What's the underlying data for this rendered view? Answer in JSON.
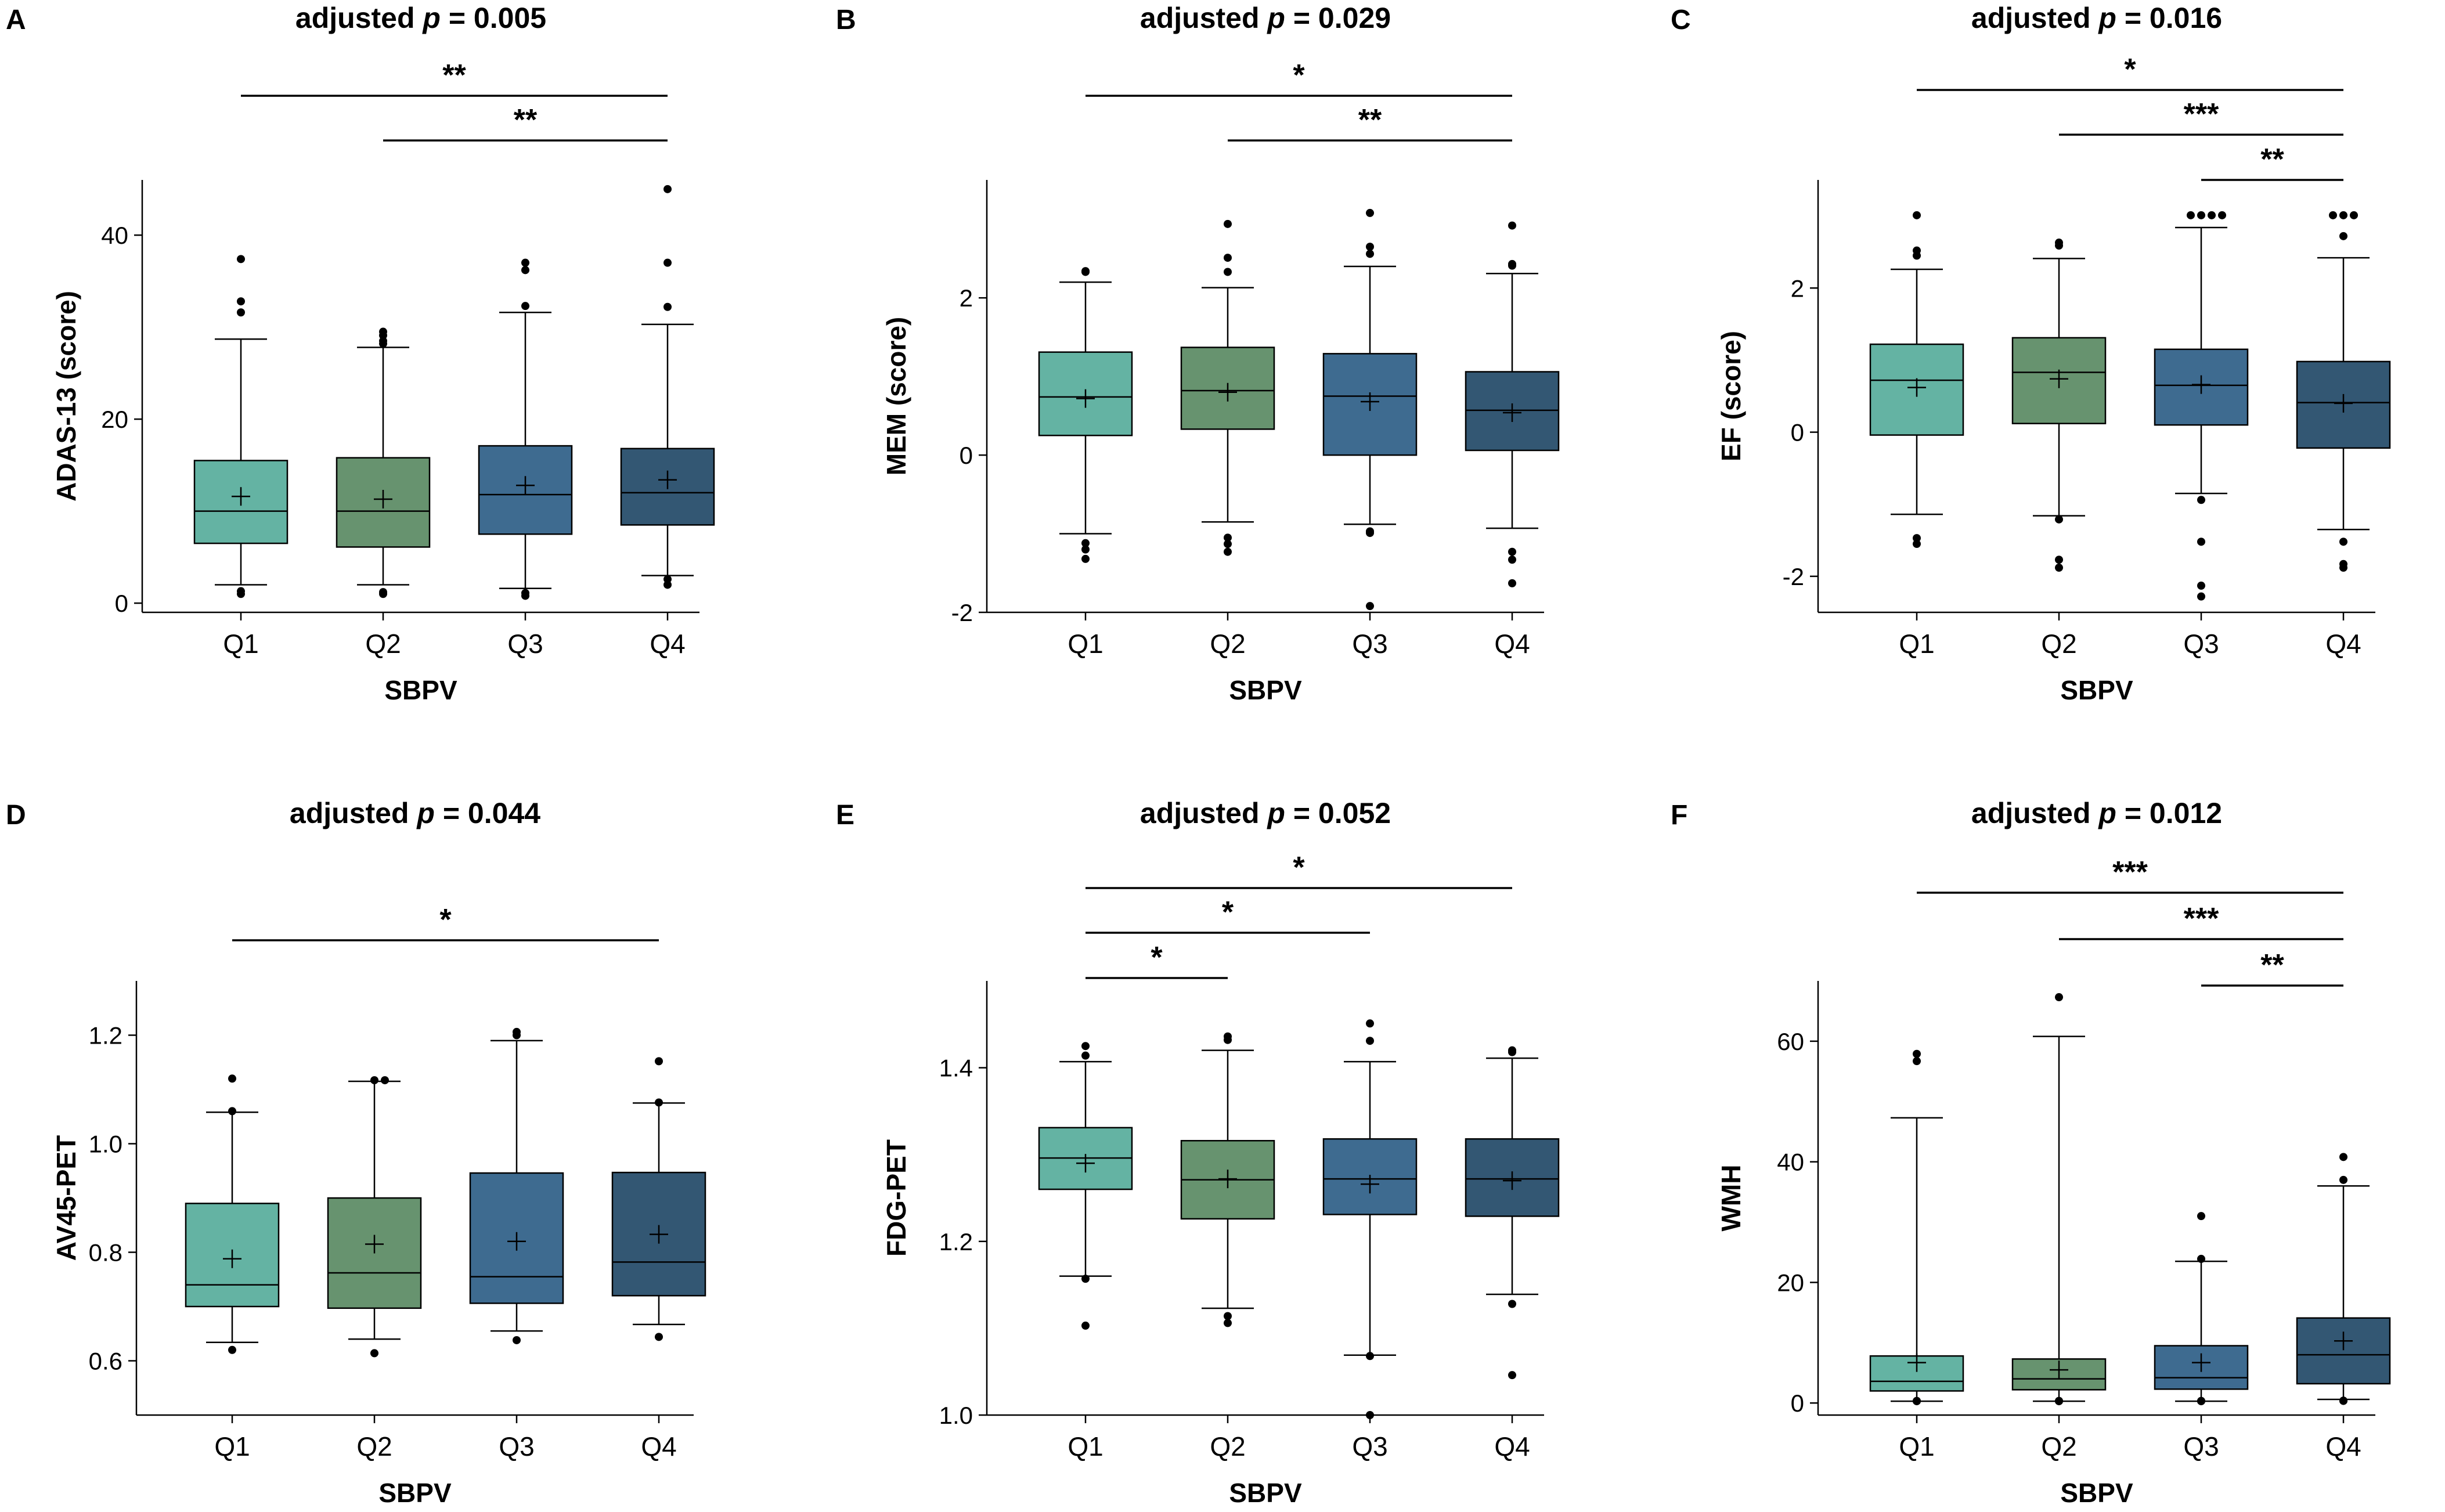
{
  "colors": {
    "q1": "#64b3a3",
    "q2": "#67936f",
    "q3": "#3e6b90",
    "q4": "#335773",
    "line": "#000000"
  },
  "chart_data": [
    {
      "panel": "A",
      "type": "boxplot",
      "title_prefix": "adjusted ",
      "title_p": "p",
      "title_suffix": " = 0.005",
      "xlabel": "SBPV",
      "ylabel": "ADAS-13 (score)",
      "categories": [
        "Q1",
        "Q2",
        "Q3",
        "Q4"
      ],
      "ylim": [
        -1,
        46
      ],
      "yticks": [
        0,
        20,
        40
      ],
      "boxes": [
        {
          "whisker_low": 2,
          "q1": 6.5,
          "median": 10,
          "q3": 15.5,
          "whisker_high": 28.7,
          "mean": 11.6,
          "outliers": [
            1,
            1.3,
            31.6,
            32.8,
            37.4
          ]
        },
        {
          "whisker_low": 2,
          "q1": 6.1,
          "median": 10,
          "q3": 15.8,
          "whisker_high": 27.8,
          "mean": 11.3,
          "outliers": [
            1,
            1.2,
            28.2,
            28.5,
            29.1,
            29.5
          ]
        },
        {
          "whisker_low": 1.6,
          "q1": 7.5,
          "median": 11.8,
          "q3": 17.1,
          "whisker_high": 31.6,
          "mean": 12.8,
          "outliers": [
            0.8,
            1.1,
            32.3,
            36.2,
            37
          ]
        },
        {
          "whisker_low": 3,
          "q1": 8.5,
          "median": 12,
          "q3": 16.8,
          "whisker_high": 30.3,
          "mean": 13.4,
          "outliers": [
            2,
            2.6,
            32.2,
            37,
            45
          ]
        }
      ],
      "significance": [
        {
          "from": 0,
          "to": 3,
          "label": "**"
        },
        {
          "from": 1,
          "to": 3,
          "label": "**"
        }
      ]
    },
    {
      "panel": "B",
      "type": "boxplot",
      "title_prefix": "adjusted ",
      "title_p": "p",
      "title_suffix": " = 0.029",
      "xlabel": "SBPV",
      "ylabel": "MEM (score)",
      "categories": [
        "Q1",
        "Q2",
        "Q3",
        "Q4"
      ],
      "ylim": [
        -2,
        3.5
      ],
      "yticks": [
        -2,
        0,
        2
      ],
      "boxes": [
        {
          "whisker_low": -1,
          "q1": 0.25,
          "median": 0.74,
          "q3": 1.31,
          "whisker_high": 2.2,
          "mean": 0.72,
          "outliers": [
            -1.2,
            -1.32,
            -1.12,
            2.33,
            2.34
          ]
        },
        {
          "whisker_low": -0.85,
          "q1": 0.33,
          "median": 0.82,
          "q3": 1.37,
          "whisker_high": 2.13,
          "mean": 0.8,
          "outliers": [
            -1.13,
            -1.23,
            -1.05,
            2.33,
            2.51,
            2.94
          ]
        },
        {
          "whisker_low": -0.88,
          "q1": 0,
          "median": 0.75,
          "q3": 1.29,
          "whisker_high": 2.4,
          "mean": 0.68,
          "outliers": [
            -0.97,
            -0.99,
            -1.92,
            2.56,
            2.65,
            3.08
          ]
        },
        {
          "whisker_low": -0.93,
          "q1": 0.06,
          "median": 0.57,
          "q3": 1.06,
          "whisker_high": 2.31,
          "mean": 0.54,
          "outliers": [
            -1.23,
            -1.33,
            -1.63,
            2.41,
            2.43,
            2.92
          ]
        }
      ],
      "significance": [
        {
          "from": 0,
          "to": 3,
          "label": "*"
        },
        {
          "from": 1,
          "to": 3,
          "label": "**"
        }
      ]
    },
    {
      "panel": "C",
      "type": "boxplot",
      "title_prefix": "adjusted ",
      "title_p": "p",
      "title_suffix": " = 0.016",
      "xlabel": "SBPV",
      "ylabel": "EF (score)",
      "categories": [
        "Q1",
        "Q2",
        "Q3",
        "Q4"
      ],
      "ylim": [
        -2.5,
        3.5
      ],
      "yticks": [
        -2,
        0,
        2
      ],
      "boxes": [
        {
          "whisker_low": -1.14,
          "q1": -0.04,
          "median": 0.72,
          "q3": 1.22,
          "whisker_high": 2.26,
          "mean": 0.62,
          "outliers": [
            -1.47,
            -1.55,
            2.45,
            2.52,
            3.01
          ]
        },
        {
          "whisker_low": -1.16,
          "q1": 0.12,
          "median": 0.83,
          "q3": 1.31,
          "whisker_high": 2.41,
          "mean": 0.74,
          "outliers": [
            -1.21,
            -1.77,
            -1.88,
            2.59,
            2.63
          ]
        },
        {
          "whisker_low": -0.85,
          "q1": 0.1,
          "median": 0.65,
          "q3": 1.15,
          "whisker_high": 2.84,
          "mean": 0.66,
          "outliers": [
            -0.94,
            -1.52,
            -2.13,
            -2.28,
            3.01,
            3.01,
            3.01,
            3.01
          ]
        },
        {
          "whisker_low": -1.35,
          "q1": -0.22,
          "median": 0.41,
          "q3": 0.98,
          "whisker_high": 2.42,
          "mean": 0.4,
          "outliers": [
            -1.52,
            -1.83,
            -1.88,
            2.72,
            3.01,
            3.01,
            3.01
          ]
        }
      ],
      "significance": [
        {
          "from": 0,
          "to": 3,
          "label": "*"
        },
        {
          "from": 1,
          "to": 3,
          "label": "***"
        },
        {
          "from": 2,
          "to": 3,
          "label": "**"
        }
      ]
    },
    {
      "panel": "D",
      "type": "boxplot",
      "title_prefix": "adjusted ",
      "title_p": "p",
      "title_suffix": " = 0.044",
      "xlabel": "SBPV",
      "ylabel": "AV45-PET",
      "categories": [
        "Q1",
        "Q2",
        "Q3",
        "Q4"
      ],
      "ylim": [
        0.5,
        1.3
      ],
      "yticks": [
        0.6,
        0.8,
        1.0,
        1.2
      ],
      "tick_decimals": 1,
      "boxes": [
        {
          "whisker_low": 0.634,
          "q1": 0.7,
          "median": 0.74,
          "q3": 0.89,
          "whisker_high": 1.058,
          "mean": 0.788,
          "outliers": [
            0.62,
            1.06,
            1.12
          ]
        },
        {
          "whisker_low": 0.64,
          "q1": 0.697,
          "median": 0.762,
          "q3": 0.9,
          "whisker_high": 1.115,
          "mean": 0.815,
          "outliers": [
            0.614,
            1.117,
            1.117
          ]
        },
        {
          "whisker_low": 0.655,
          "q1": 0.706,
          "median": 0.755,
          "q3": 0.946,
          "whisker_high": 1.19,
          "mean": 0.82,
          "outliers": [
            0.638,
            1.2,
            1.206
          ]
        },
        {
          "whisker_low": 0.667,
          "q1": 0.72,
          "median": 0.782,
          "q3": 0.947,
          "whisker_high": 1.075,
          "mean": 0.833,
          "outliers": [
            0.644,
            1.076,
            1.152
          ]
        }
      ],
      "significance": [
        {
          "from": 0,
          "to": 3,
          "label": "*"
        }
      ]
    },
    {
      "panel": "E",
      "type": "boxplot",
      "title_prefix": "adjusted ",
      "title_p": "p",
      "title_suffix": " = 0.052",
      "xlabel": "SBPV",
      "ylabel": "FDG-PET",
      "categories": [
        "Q1",
        "Q2",
        "Q3",
        "Q4"
      ],
      "ylim": [
        1.0,
        1.5
      ],
      "yticks": [
        1.0,
        1.2,
        1.4
      ],
      "tick_decimals": 1,
      "boxes": [
        {
          "whisker_low": 1.16,
          "q1": 1.26,
          "median": 1.296,
          "q3": 1.331,
          "whisker_high": 1.407,
          "mean": 1.29,
          "outliers": [
            1.103,
            1.157,
            1.414,
            1.425
          ]
        },
        {
          "whisker_low": 1.123,
          "q1": 1.226,
          "median": 1.271,
          "q3": 1.316,
          "whisker_high": 1.42,
          "mean": 1.272,
          "outliers": [
            1.106,
            1.114,
            1.432,
            1.436
          ]
        },
        {
          "whisker_low": 1.069,
          "q1": 1.231,
          "median": 1.272,
          "q3": 1.318,
          "whisker_high": 1.407,
          "mean": 1.266,
          "outliers": [
            1.0,
            1.068,
            1.431,
            1.451
          ]
        },
        {
          "whisker_low": 1.139,
          "q1": 1.229,
          "median": 1.272,
          "q3": 1.318,
          "whisker_high": 1.411,
          "mean": 1.27,
          "outliers": [
            1.046,
            1.128,
            1.418,
            1.42
          ]
        }
      ],
      "significance": [
        {
          "from": 0,
          "to": 3,
          "label": "*"
        },
        {
          "from": 0,
          "to": 2,
          "label": "*"
        },
        {
          "from": 0,
          "to": 1,
          "label": "*"
        }
      ]
    },
    {
      "panel": "F",
      "type": "boxplot",
      "title_prefix": "adjusted ",
      "title_p": "p",
      "title_suffix": " = 0.012",
      "xlabel": "SBPV",
      "ylabel": "WMH",
      "categories": [
        "Q1",
        "Q2",
        "Q3",
        "Q4"
      ],
      "ylim": [
        -2,
        70
      ],
      "yticks": [
        0,
        20,
        40,
        60
      ],
      "boxes": [
        {
          "whisker_low": 0.3,
          "q1": 2,
          "median": 3.6,
          "q3": 7.8,
          "whisker_high": 47.3,
          "mean": 6.7,
          "outliers": [
            0.3,
            0.35,
            56.7,
            57.9
          ]
        },
        {
          "whisker_low": 0.3,
          "q1": 2.2,
          "median": 4,
          "q3": 7.3,
          "whisker_high": 60.8,
          "mean": 5.5,
          "outliers": [
            0.3,
            0.35,
            67.3
          ]
        },
        {
          "whisker_low": 0.3,
          "q1": 2.3,
          "median": 4.2,
          "q3": 9.5,
          "whisker_high": 23.5,
          "mean": 6.7,
          "outliers": [
            0.3,
            0.35,
            23.9,
            31
          ]
        },
        {
          "whisker_low": 0.6,
          "q1": 3.2,
          "median": 8,
          "q3": 14.1,
          "whisker_high": 36,
          "mean": 10.3,
          "outliers": [
            0.35,
            0.4,
            37,
            40.8
          ]
        }
      ],
      "significance": [
        {
          "from": 0,
          "to": 3,
          "label": "***"
        },
        {
          "from": 1,
          "to": 3,
          "label": "***"
        },
        {
          "from": 2,
          "to": 3,
          "label": "**"
        }
      ]
    }
  ]
}
